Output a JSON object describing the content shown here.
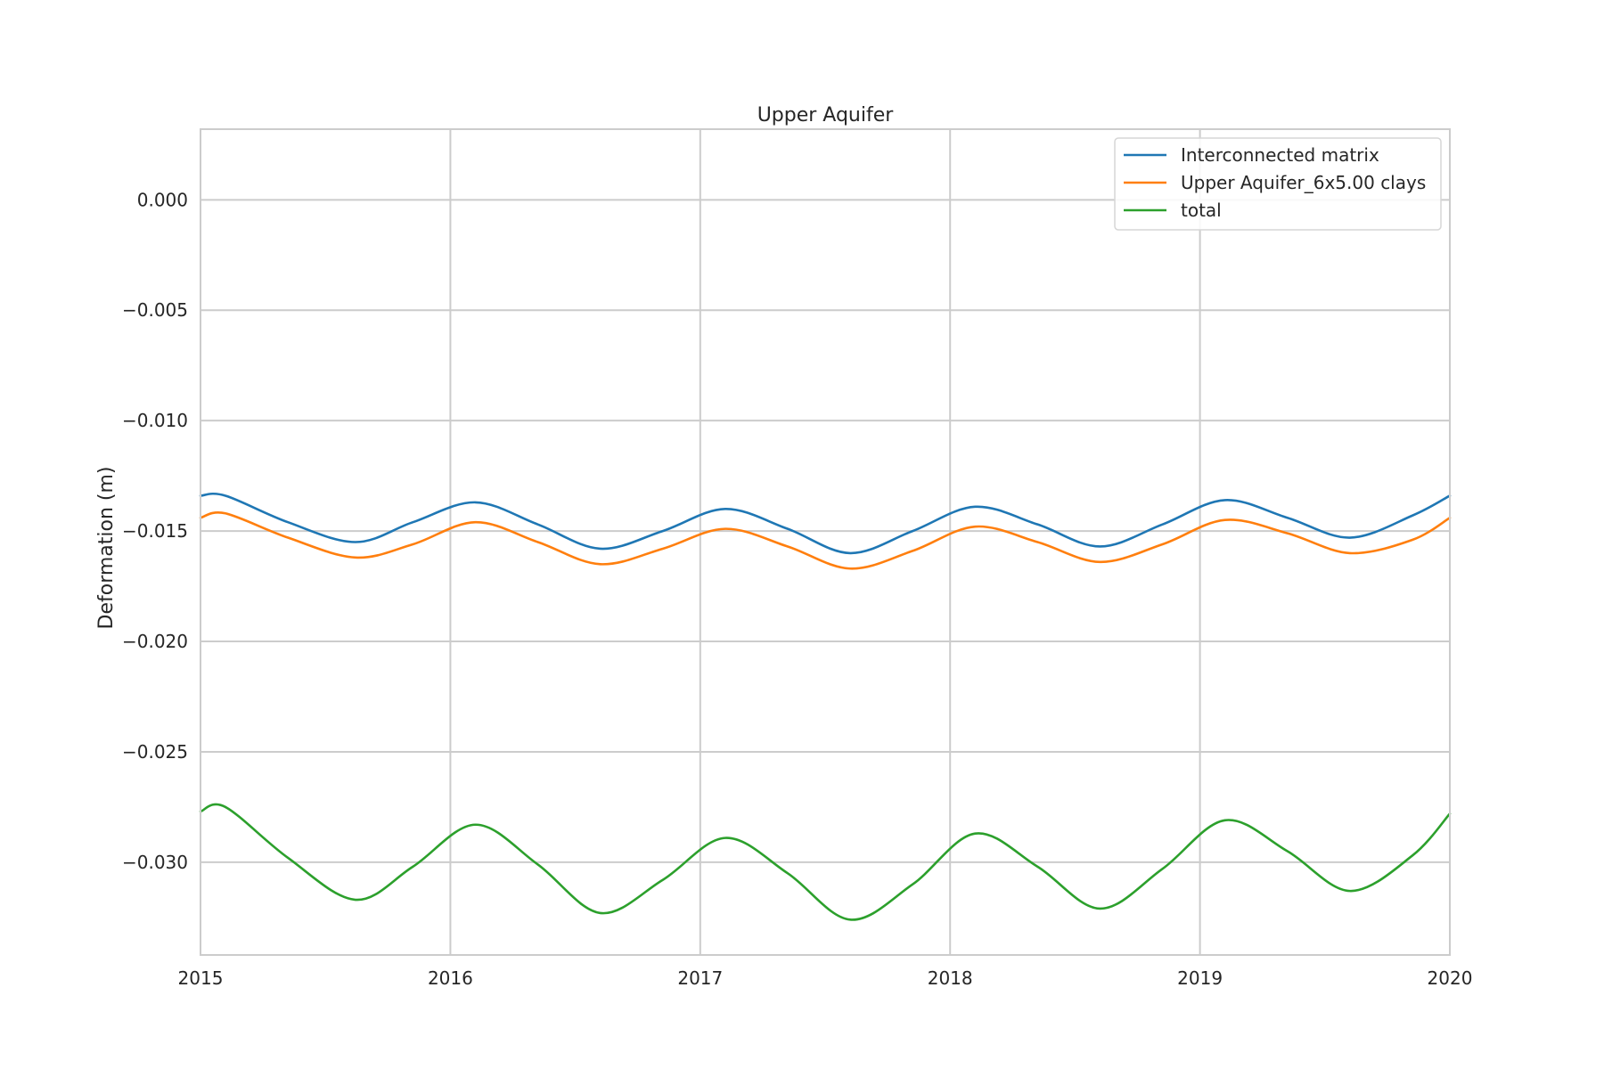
{
  "chart_data": {
    "type": "line",
    "title": "Upper Aquifer",
    "xlabel": "",
    "ylabel": "Deformation (m)",
    "xlim": [
      2015,
      2020
    ],
    "ylim": [
      -0.0342,
      0.0032
    ],
    "x_ticks": [
      2015,
      2016,
      2017,
      2018,
      2019,
      2020
    ],
    "x_tick_labels": [
      "2015",
      "2016",
      "2017",
      "2018",
      "2019",
      "2020"
    ],
    "y_ticks": [
      0.0,
      -0.005,
      -0.01,
      -0.015,
      -0.02,
      -0.025,
      -0.03
    ],
    "y_tick_labels": [
      "0.000",
      "−0.005",
      "−0.010",
      "−0.015",
      "−0.020",
      "−0.025",
      "−0.030"
    ],
    "grid": true,
    "legend_position": "top-right",
    "x": [
      2015.0,
      2015.1,
      2015.35,
      2015.62,
      2015.85,
      2016.1,
      2016.35,
      2016.6,
      2016.85,
      2017.1,
      2017.35,
      2017.6,
      2017.85,
      2018.1,
      2018.35,
      2018.6,
      2018.85,
      2019.1,
      2019.35,
      2019.6,
      2019.85,
      2020.0
    ],
    "series": [
      {
        "name": "Interconnected matrix",
        "color": "#1f77b4",
        "values": [
          -0.0134,
          -0.0134,
          -0.0146,
          -0.0155,
          -0.0146,
          -0.0137,
          -0.0147,
          -0.0158,
          -0.015,
          -0.014,
          -0.0149,
          -0.016,
          -0.015,
          -0.0139,
          -0.0147,
          -0.0157,
          -0.0147,
          -0.0136,
          -0.0144,
          -0.0153,
          -0.0143,
          -0.0134
        ]
      },
      {
        "name": "Upper Aquifer_6x5.00 clays",
        "color": "#ff7f0e",
        "values": [
          -0.0144,
          -0.0142,
          -0.0153,
          -0.0162,
          -0.0156,
          -0.0146,
          -0.0155,
          -0.0165,
          -0.0158,
          -0.0149,
          -0.0157,
          -0.0167,
          -0.0159,
          -0.0148,
          -0.0155,
          -0.0164,
          -0.0156,
          -0.0145,
          -0.0151,
          -0.016,
          -0.0154,
          -0.0144
        ]
      },
      {
        "name": "total",
        "color": "#2ca02c",
        "values": [
          -0.0277,
          -0.0275,
          -0.0298,
          -0.0317,
          -0.0302,
          -0.0283,
          -0.0301,
          -0.0323,
          -0.0308,
          -0.0289,
          -0.0305,
          -0.0326,
          -0.031,
          -0.0287,
          -0.0302,
          -0.0321,
          -0.0303,
          -0.0281,
          -0.0295,
          -0.0313,
          -0.0297,
          -0.0278
        ]
      }
    ]
  }
}
